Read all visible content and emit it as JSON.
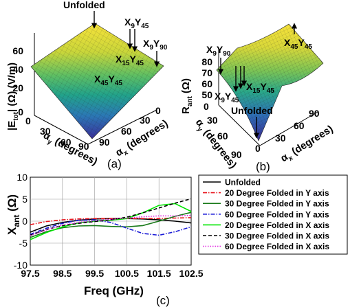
{
  "panels": {
    "a": {
      "label": "(a)",
      "zlabel": "|E",
      "zlabel_sub": "tot",
      "zlabel_rest": "| (Ω) (V/m)",
      "ylabel": "α",
      "ylabel_sub": "y",
      "ylabel_rest": " (degrees)",
      "xlabel": "α",
      "xlabel_sub": "x",
      "xlabel_rest": " (degrees)",
      "z_ticks": [
        "60",
        "40",
        "20",
        "0"
      ],
      "y_ticks": [
        "0",
        "30",
        "60",
        "90"
      ],
      "x_ticks": [
        "90",
        "60",
        "30",
        "0"
      ],
      "annotations": [
        {
          "text": "Unfolded"
        },
        {
          "text": "X",
          "sub1": "9",
          "mid": "Y",
          "sub2": "45"
        },
        {
          "text": "X",
          "sub1": "9",
          "mid": "Y",
          "sub2": "90"
        },
        {
          "text": "X",
          "sub1": "15",
          "mid": "Y",
          "sub2": "45"
        },
        {
          "text": "X",
          "sub1": "45",
          "mid": "Y",
          "sub2": "45"
        }
      ]
    },
    "b": {
      "label": "(b)",
      "zlabel": "R",
      "zlabel_sub": "ant",
      "zlabel_rest": " (Ω)",
      "ylabel": "α",
      "ylabel_sub": "y",
      "ylabel_rest": " (degrees)",
      "xlabel": "α",
      "xlabel_sub": "x",
      "xlabel_rest": " (degrees)",
      "z_ticks": [
        "80",
        "70",
        "60",
        "50"
      ],
      "y_ticks": [
        "0",
        "30",
        "60",
        "90"
      ],
      "x_ticks": [
        "90",
        "60",
        "30",
        "0"
      ],
      "annotations": [
        {
          "text": "X",
          "sub1": "9",
          "mid": "Y",
          "sub2": "90"
        },
        {
          "text": "X",
          "sub1": "45",
          "mid": "Y",
          "sub2": "45"
        },
        {
          "text": "X",
          "sub1": "9",
          "mid": "Y",
          "sub2": "45"
        },
        {
          "text": "X",
          "sub1": "15",
          "mid": "Y",
          "sub2": "45"
        },
        {
          "text": "Unfolded"
        }
      ]
    }
  },
  "chart_data": {
    "type": "line",
    "panel_label": "(c)",
    "xlabel": "Freq (GHz)",
    "ylabel": "X",
    "ylabel_sub": "ant",
    "ylabel_rest": " (Ω)",
    "xlim": [
      97.5,
      102.5
    ],
    "ylim": [
      -10,
      10
    ],
    "x_ticks": [
      "97.5",
      "98.5",
      "99.5",
      "100.5",
      "101.5",
      "102.5"
    ],
    "y_ticks": [
      "10",
      "5",
      "0",
      "-5",
      "-10"
    ],
    "grid": true,
    "legend_position": "right",
    "x": [
      97.5,
      98.0,
      98.5,
      99.0,
      99.5,
      100.0,
      100.5,
      101.0,
      101.5,
      102.0,
      102.5
    ],
    "series": [
      {
        "name": "Unfolded",
        "color": "#000000",
        "dash": "solid",
        "values": [
          -2.5,
          -1.1,
          -0.3,
          0.2,
          0.5,
          0.6,
          0.6,
          0.5,
          0.3,
          0.0,
          -0.4
        ]
      },
      {
        "name": "20 Degree Folded in Y axis",
        "color": "#e8141c",
        "dash": "dashdot",
        "values": [
          -0.8,
          -0.1,
          0.3,
          0.5,
          0.6,
          0.6,
          0.6,
          0.6,
          0.6,
          0.7,
          0.8
        ]
      },
      {
        "name": "30 Degree Folded in Y axis",
        "color": "#1a7a1a",
        "dash": "solid",
        "values": [
          -3.7,
          -2.4,
          -1.5,
          -1.1,
          -1.0,
          -1.2,
          -1.3,
          -1.0,
          0.0,
          1.1,
          2.0
        ]
      },
      {
        "name": "60 Degree Folded in Y axis",
        "color": "#1a1ad6",
        "dash": "dashdot",
        "values": [
          -3.0,
          -1.6,
          -0.5,
          0.2,
          0.3,
          -0.3,
          -1.6,
          -2.8,
          -3.2,
          -2.4,
          -1.3
        ]
      },
      {
        "name": "20 Degree Folded in X axis",
        "color": "#00e600",
        "dash": "solid",
        "values": [
          -4.2,
          -2.6,
          -1.3,
          -0.4,
          0.0,
          0.2,
          0.6,
          1.9,
          3.6,
          4.0,
          2.2
        ]
      },
      {
        "name": "30 Degree Folded in X axis",
        "color": "#000000",
        "dash": "dashed",
        "values": [
          -3.2,
          -1.9,
          -1.0,
          -0.5,
          -0.1,
          0.3,
          0.9,
          1.9,
          3.0,
          4.1,
          5.1
        ]
      },
      {
        "name": "60 Degree Folded in X axis",
        "color": "#e020e0",
        "dash": "dotted",
        "values": [
          -3.3,
          -2.0,
          -0.9,
          -0.3,
          0.1,
          0.4,
          0.7,
          1.0,
          1.2,
          1.2,
          1.3
        ]
      }
    ]
  }
}
